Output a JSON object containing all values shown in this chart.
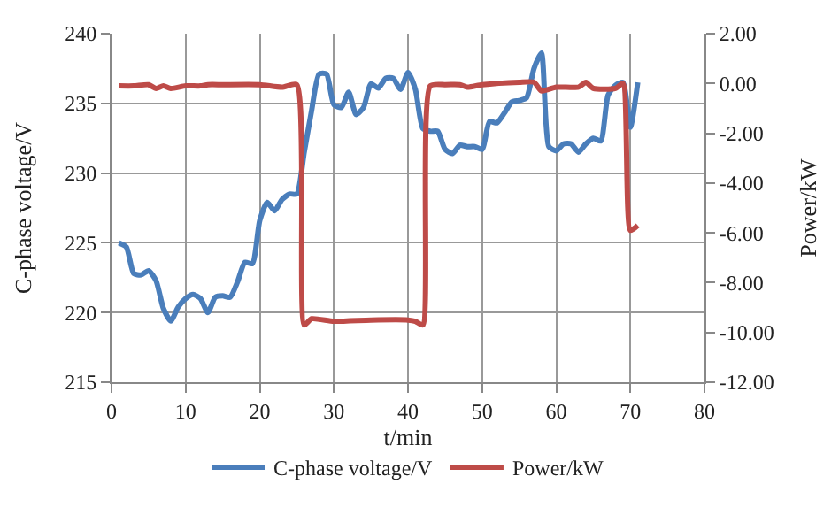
{
  "chart_data": {
    "type": "line",
    "xlabel": "t/min",
    "ylabel": "C-phase voltage/V",
    "y2label": "Power/kW",
    "xlim": [
      0,
      80
    ],
    "xticks": [
      0,
      10,
      20,
      30,
      40,
      50,
      60,
      70,
      80
    ],
    "ylim": [
      215,
      240
    ],
    "yticks": [
      215,
      220,
      225,
      230,
      235,
      240
    ],
    "y2lim": [
      -12,
      2
    ],
    "y2ticks": [
      {
        "value": -12,
        "label": "-12.00"
      },
      {
        "value": -10,
        "label": "-10.00"
      },
      {
        "value": -8,
        "label": "-8.00"
      },
      {
        "value": -6,
        "label": "-6.00"
      },
      {
        "value": -4,
        "label": "-4.00"
      },
      {
        "value": -2,
        "label": "-2.00"
      },
      {
        "value": 0,
        "label": "0.00"
      },
      {
        "value": 2,
        "label": "2.00"
      }
    ],
    "grid": true,
    "legend": "bottom",
    "marker": "none",
    "line_style": "solid",
    "series": [
      {
        "name": "C-phase voltage/V",
        "color": "#4a7ebb",
        "x": [
          1,
          2,
          3,
          4,
          5,
          6,
          7,
          8,
          9,
          10,
          11,
          12,
          13,
          14,
          15,
          16,
          17,
          18,
          19,
          20,
          21,
          22,
          23,
          24,
          25,
          26,
          27,
          28,
          29,
          30,
          31,
          32,
          33,
          34,
          35,
          36,
          37,
          38,
          39,
          40,
          41,
          42,
          43,
          44,
          45,
          46,
          47,
          48,
          49,
          50,
          51,
          52,
          53,
          54,
          55,
          56,
          57,
          58,
          59,
          60,
          61,
          62,
          63,
          64,
          65,
          66,
          67,
          68,
          69,
          70,
          71
        ],
        "values": [
          225,
          224.7,
          222.8,
          222.7,
          223,
          222.3,
          220.3,
          219.4,
          220.4,
          221,
          221.3,
          221,
          220,
          221.1,
          221.2,
          221.1,
          222.2,
          223.6,
          223.5,
          226.6,
          227.9,
          227.3,
          228.1,
          228.5,
          228.5,
          231.5,
          234.5,
          237.1,
          237.1,
          234.9,
          234.7,
          235.8,
          234.2,
          234.7,
          236.4,
          236.1,
          236.8,
          236.8,
          236,
          237.2,
          236,
          233.2,
          233,
          233,
          231.7,
          231.4,
          232,
          231.9,
          231.9,
          231.7,
          233.7,
          233.6,
          234.3,
          235.1,
          235.2,
          235.4,
          237.5,
          238.6,
          231.9,
          231.6,
          232.1,
          232.1,
          231.5,
          232.1,
          232.5,
          232.3,
          235.6,
          236.3,
          236.5,
          233.3,
          236.5
        ]
      },
      {
        "name": "Power/kW",
        "color": "#be4b48",
        "axis": "y2",
        "x": [
          1,
          3,
          5,
          6,
          7,
          8,
          10,
          12,
          13,
          15,
          20,
          23,
          25,
          26,
          27,
          30,
          35,
          40,
          41,
          42,
          43,
          45,
          47,
          48,
          50,
          55,
          57,
          58,
          60,
          63,
          64,
          65,
          68,
          69,
          70,
          71
        ],
        "values": [
          -0.1,
          -0.1,
          -0.05,
          -0.2,
          -0.1,
          -0.2,
          -0.1,
          -0.1,
          -0.05,
          -0.05,
          -0.05,
          -0.15,
          -0.05,
          -9.7,
          -9.45,
          -9.55,
          -9.5,
          -9.5,
          -9.55,
          -9.7,
          -0.1,
          -0.05,
          -0.05,
          -0.15,
          -0.05,
          0.05,
          0.05,
          -0.3,
          -0.15,
          -0.15,
          0.05,
          -0.2,
          -0.2,
          0,
          -5.9,
          -5.7
        ]
      }
    ]
  }
}
